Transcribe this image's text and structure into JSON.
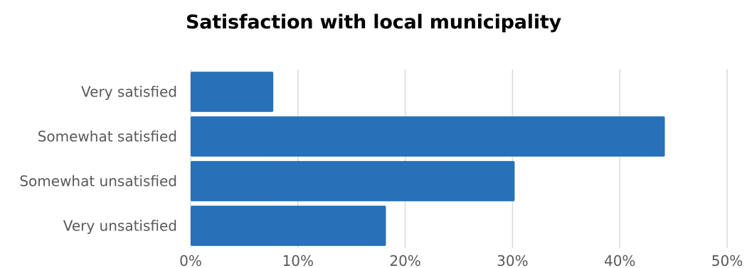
{
  "chart_data": {
    "type": "bar",
    "orientation": "horizontal",
    "title": "Satisfaction with local municipality",
    "categories": [
      "Very satisfied",
      "Somewhat satisfied",
      "Somewhat unsatisfied",
      "Very unsatisfied"
    ],
    "values": [
      7.7,
      44.2,
      30.2,
      18.2
    ],
    "value_unit": "%",
    "xlim": [
      0,
      50
    ],
    "x_ticks": [
      "0%",
      "10%",
      "20%",
      "30%",
      "40%",
      "50%"
    ],
    "x_tick_values": [
      0,
      10,
      20,
      30,
      40,
      50
    ],
    "grid": "vertical",
    "legend": "none",
    "bar_color": "#2870b8",
    "grid_color": "#d9d9d9",
    "xlabel": "",
    "ylabel": ""
  }
}
